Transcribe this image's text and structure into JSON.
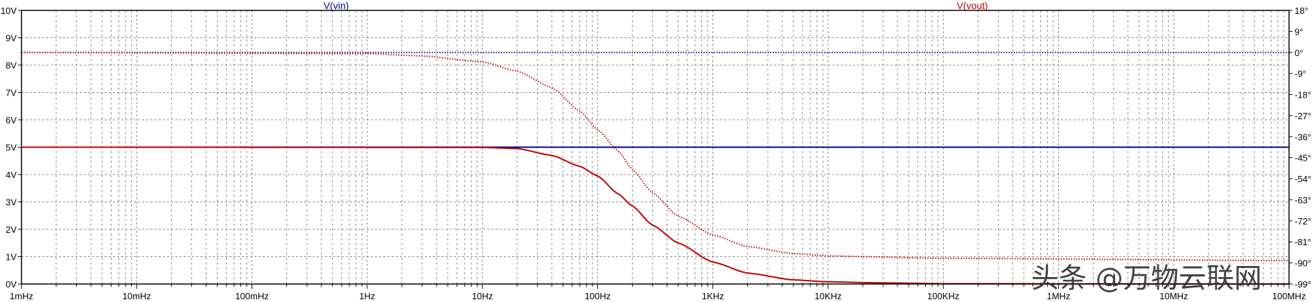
{
  "chart_data": {
    "type": "line",
    "x_scale": "log",
    "x_ticks": [
      {
        "value": 0.001,
        "label": "1mHz"
      },
      {
        "value": 0.01,
        "label": "10mHz"
      },
      {
        "value": 0.1,
        "label": "100mHz"
      },
      {
        "value": 1,
        "label": "1Hz"
      },
      {
        "value": 10,
        "label": "10Hz"
      },
      {
        "value": 100,
        "label": "100Hz"
      },
      {
        "value": 1000,
        "label": "1KHz"
      },
      {
        "value": 10000,
        "label": "10KHz"
      },
      {
        "value": 100000,
        "label": "100KHz"
      },
      {
        "value": 1000000,
        "label": "1MHz"
      },
      {
        "value": 10000000,
        "label": "10MHz"
      },
      {
        "value": 100000000,
        "label": "100MHz"
      }
    ],
    "xlim": [
      0.001,
      100000000
    ],
    "y_left": {
      "ylim": [
        0,
        10
      ],
      "ticks": [
        {
          "value": 0,
          "label": "0V"
        },
        {
          "value": 1,
          "label": "1V"
        },
        {
          "value": 2,
          "label": "2V"
        },
        {
          "value": 3,
          "label": "3V"
        },
        {
          "value": 4,
          "label": "4V"
        },
        {
          "value": 5,
          "label": "5V"
        },
        {
          "value": 6,
          "label": "6V"
        },
        {
          "value": 7,
          "label": "7V"
        },
        {
          "value": 8,
          "label": "8V"
        },
        {
          "value": 9,
          "label": "9V"
        },
        {
          "value": 10,
          "label": "10V"
        }
      ]
    },
    "y_right": {
      "ylim": [
        -99,
        18
      ],
      "ticks": [
        {
          "value": 18,
          "label": "18°"
        },
        {
          "value": 9,
          "label": "9°"
        },
        {
          "value": 0,
          "label": "0°"
        },
        {
          "value": -9,
          "label": "-9°"
        },
        {
          "value": -18,
          "label": "-18°"
        },
        {
          "value": -27,
          "label": "-27°"
        },
        {
          "value": -36,
          "label": "-36°"
        },
        {
          "value": -45,
          "label": "-45°"
        },
        {
          "value": -54,
          "label": "-54°"
        },
        {
          "value": -63,
          "label": "-63°"
        },
        {
          "value": -72,
          "label": "-72°"
        },
        {
          "value": -81,
          "label": "-81°"
        },
        {
          "value": -90,
          "label": "-90°"
        },
        {
          "value": -99,
          "label": "-99°"
        }
      ]
    },
    "grid": true,
    "series": [
      {
        "name": "V(vin)",
        "color": "#00008b",
        "legend_position": "top-left",
        "magnitude": {
          "axis": "left",
          "style": "solid",
          "x": [
            0.001,
            100000000
          ],
          "y": [
            5,
            5
          ]
        },
        "phase": {
          "axis": "right",
          "style": "dotted",
          "x": [
            0.001,
            100000000
          ],
          "y": [
            0,
            0
          ]
        }
      },
      {
        "name": "V(vout)",
        "color": "#c00000",
        "legend_position": "top-right",
        "magnitude": {
          "axis": "left",
          "style": "solid",
          "x": [
            0.001,
            10,
            20,
            40,
            70,
            100,
            150,
            200,
            300,
            500,
            1000,
            2000,
            5000,
            10000,
            30000,
            100000,
            100000000
          ],
          "y": [
            5.0,
            4.99,
            4.95,
            4.7,
            4.3,
            3.95,
            3.3,
            2.85,
            2.15,
            1.5,
            0.8,
            0.4,
            0.15,
            0.08,
            0.04,
            0.01,
            0.0
          ]
        },
        "phase": {
          "axis": "right",
          "style": "dotted",
          "x": [
            0.001,
            1,
            3,
            10,
            20,
            40,
            70,
            100,
            150,
            200,
            300,
            500,
            1000,
            2000,
            5000,
            10000,
            100000,
            100000000
          ],
          "y": [
            0,
            -0.5,
            -1.5,
            -4,
            -8,
            -15,
            -25,
            -33,
            -42,
            -50,
            -60,
            -70,
            -78,
            -83,
            -86,
            -87,
            -88,
            -89
          ]
        }
      }
    ]
  },
  "watermark": "头条 @万物云联网"
}
